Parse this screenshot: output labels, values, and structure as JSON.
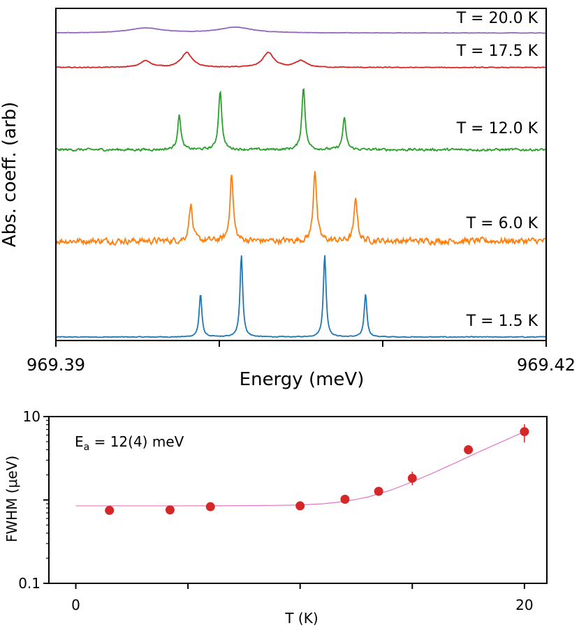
{
  "chart_data": [
    {
      "type": "line",
      "xlabel": "Energy (meV)",
      "ylabel": "Abs. coeff. (arb)",
      "xlim": [
        969.39,
        969.42
      ],
      "x_ticks": [
        969.39,
        969.4,
        969.41,
        969.42
      ],
      "x_tick_labels": [
        "969.39",
        "",
        "",
        "969.42"
      ],
      "y_ticks": "none",
      "legend": "none",
      "series": [
        {
          "label": "T = 1.5 K",
          "color": "#1f77b4",
          "baseline": 0,
          "noise": 0.004,
          "peaks": [
            {
              "x": 969.39885,
              "height": 0.26,
              "width": 0.0001
            },
            {
              "x": 969.40135,
              "height": 0.5,
              "width": 0.0001
            },
            {
              "x": 969.40645,
              "height": 0.5,
              "width": 0.0001
            },
            {
              "x": 969.40895,
              "height": 0.26,
              "width": 0.0001
            }
          ]
        },
        {
          "label": "T = 6.0 K",
          "color": "#ff7f0e",
          "baseline": 0.585,
          "noise": 0.03,
          "peaks": [
            {
              "x": 969.39825,
              "height": 0.23,
              "width": 0.00012
            },
            {
              "x": 969.40075,
              "height": 0.41,
              "width": 0.00012
            },
            {
              "x": 969.40585,
              "height": 0.44,
              "width": 0.00012
            },
            {
              "x": 969.40835,
              "height": 0.26,
              "width": 0.00012
            }
          ]
        },
        {
          "label": "T = 12.0 K",
          "color": "#2ca02c",
          "baseline": 1.14,
          "noise": 0.012,
          "peaks": [
            {
              "x": 969.39755,
              "height": 0.21,
              "width": 0.00012
            },
            {
              "x": 969.40005,
              "height": 0.36,
              "width": 0.00012
            },
            {
              "x": 969.40515,
              "height": 0.38,
              "width": 0.00012
            },
            {
              "x": 969.40765,
              "height": 0.19,
              "width": 0.00012
            }
          ]
        },
        {
          "label": "T = 17.5 K",
          "color": "#d62728",
          "baseline": 1.64,
          "noise": 0.004,
          "peaks": [
            {
              "x": 969.3955,
              "height": 0.04,
              "width": 0.0004
            },
            {
              "x": 969.398,
              "height": 0.09,
              "width": 0.0004
            },
            {
              "x": 969.403,
              "height": 0.09,
              "width": 0.0004
            },
            {
              "x": 969.405,
              "height": 0.04,
              "width": 0.0004
            }
          ]
        },
        {
          "label": "T = 20.0 K",
          "color": "#9467bd",
          "baseline": 1.85,
          "noise": 0.002,
          "peaks": [
            {
              "x": 969.3955,
              "height": 0.03,
              "width": 0.0012
            },
            {
              "x": 969.401,
              "height": 0.035,
              "width": 0.0012
            }
          ]
        }
      ]
    },
    {
      "type": "scatter",
      "xlabel": "T (K)",
      "ylabel": "FWHM (μeV)",
      "xlim": [
        -1.2,
        21
      ],
      "ylim": [
        0.1,
        10
      ],
      "yscale": "log",
      "x_ticks": [
        0,
        5,
        10,
        15,
        20
      ],
      "x_tick_labels": [
        "0",
        "",
        "",
        "",
        "20"
      ],
      "y_ticks": [
        0.1,
        1,
        10
      ],
      "y_tick_labels": [
        "0.1",
        "",
        "10"
      ],
      "annotation": {
        "main": "E",
        "sub": "a",
        "rest": " = 12(4) meV"
      },
      "points": {
        "color": "#d62728",
        "x": [
          1.5,
          4.2,
          6.0,
          10.0,
          12.0,
          13.5,
          15.0,
          17.5,
          20.0
        ],
        "y": [
          0.75,
          0.76,
          0.83,
          0.85,
          1.02,
          1.27,
          1.82,
          4.0,
          6.6
        ],
        "yerr_low": [
          null,
          null,
          null,
          null,
          null,
          null,
          1.5,
          null,
          4.9
        ],
        "yerr_high": [
          null,
          null,
          null,
          null,
          null,
          null,
          2.18,
          null,
          8.1
        ]
      },
      "fit": {
        "color": "#e377c2",
        "x": [
          0,
          2,
          4,
          6,
          8,
          10,
          11,
          12,
          13,
          14,
          15,
          16,
          17,
          18,
          19,
          20
        ],
        "y": [
          0.85,
          0.85,
          0.85,
          0.851,
          0.855,
          0.87,
          0.9,
          0.96,
          1.08,
          1.3,
          1.65,
          2.15,
          2.85,
          3.8,
          5.0,
          6.6
        ]
      }
    }
  ]
}
